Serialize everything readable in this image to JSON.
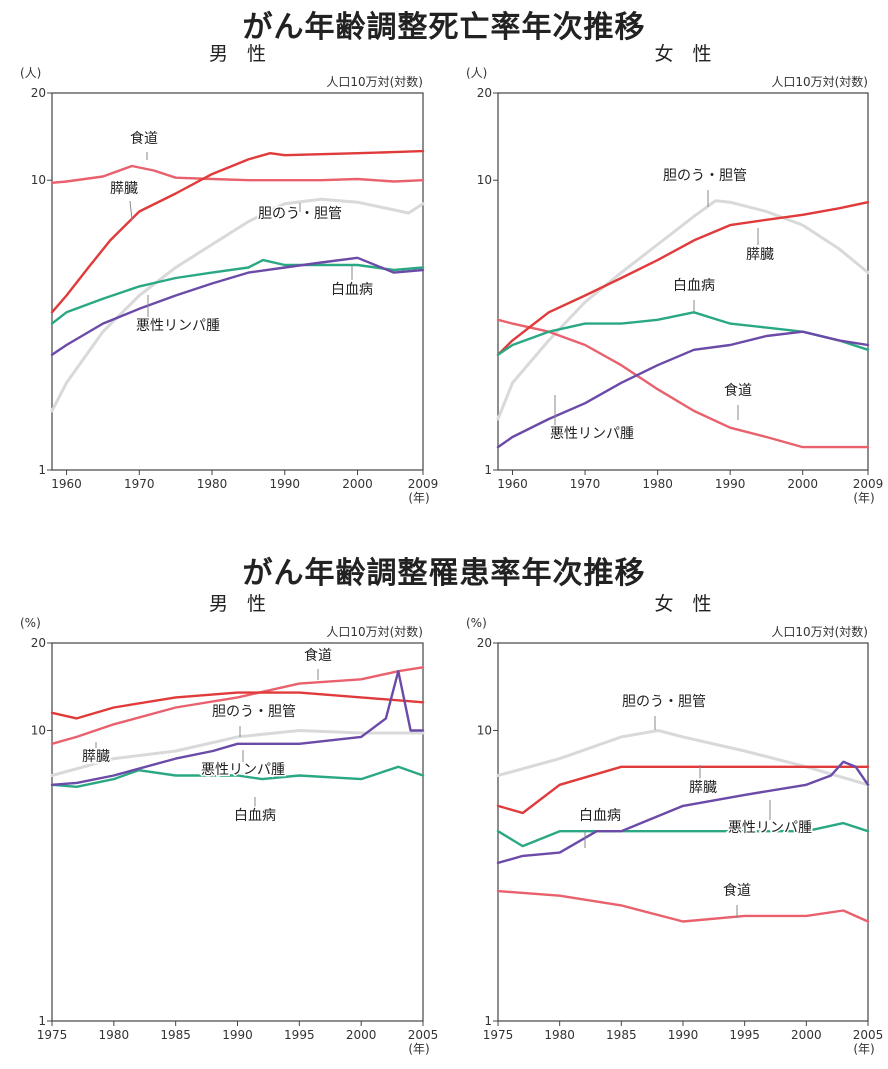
{
  "mortality": {
    "title": "がん年齢調整死亡率年次推移",
    "charts": [
      {
        "gender": "男　性",
        "unit": "(人)",
        "note": "人口10万対(対数)",
        "x_ticks": [
          "1960",
          "1970",
          "1980",
          "1990",
          "2000",
          "2009"
        ],
        "x_unit": "(年)",
        "y_ticks": [
          "20",
          "10",
          "1"
        ]
      },
      {
        "gender": "女　性",
        "unit": "(人)",
        "note": "人口10万対(対数)",
        "x_ticks": [
          "1960",
          "1970",
          "1980",
          "1990",
          "2000",
          "2009"
        ],
        "x_unit": "(年)",
        "y_ticks": [
          "20",
          "10",
          "1"
        ]
      }
    ]
  },
  "incidence": {
    "title": "がん年齢調整罹患率年次推移",
    "charts": [
      {
        "gender": "男　性",
        "unit": "(%)",
        "note": "人口10万対(対数)",
        "x_ticks": [
          "1975",
          "1980",
          "1985",
          "1990",
          "1995",
          "2000",
          "2005"
        ],
        "x_unit": "(年)",
        "y_ticks": [
          "20",
          "10",
          "1"
        ]
      },
      {
        "gender": "女　性",
        "unit": "(%)",
        "note": "人口10万対(対数)",
        "x_ticks": [
          "1975",
          "1980",
          "1985",
          "1990",
          "1995",
          "2000",
          "2005"
        ],
        "x_unit": "(年)",
        "y_ticks": [
          "20",
          "10",
          "1"
        ]
      }
    ]
  },
  "colors": {
    "食道": "#e8616d",
    "膵臓": "#e03a3a",
    "胆のう・胆管": "#d9d9d9",
    "白血病": "#2aa884",
    "悪性リンパ腫": "#6b4aa8"
  },
  "chart_data": [
    {
      "type": "line",
      "title": "がん年齢調整死亡率年次推移",
      "subtitle": "男　性",
      "ylabel": "(人)",
      "note": "人口10万対(対数)",
      "xlim": [
        1958,
        2009
      ],
      "ylim": [
        1,
        20
      ],
      "yscale": "log",
      "series": [
        {
          "name": "食道",
          "x": [
            1958,
            1960,
            1965,
            1969,
            1972,
            1975,
            1980,
            1985,
            1990,
            1995,
            2000,
            2005,
            2009
          ],
          "y": [
            9.8,
            9.9,
            10.3,
            11.2,
            10.8,
            10.2,
            10.1,
            10.0,
            10.0,
            10.0,
            10.1,
            9.9,
            10.0
          ]
        },
        {
          "name": "膵臓",
          "x": [
            1958,
            1960,
            1963,
            1966,
            1970,
            1975,
            1980,
            1985,
            1988,
            1990,
            1995,
            2000,
            2005,
            2009
          ],
          "y": [
            3.5,
            4.0,
            5.0,
            6.2,
            7.8,
            9.0,
            10.5,
            11.8,
            12.4,
            12.2,
            12.3,
            12.4,
            12.5,
            12.6
          ]
        },
        {
          "name": "胆のう・胆管",
          "x": [
            1958,
            1960,
            1965,
            1970,
            1975,
            1980,
            1985,
            1990,
            1995,
            2000,
            2005,
            2007,
            2009
          ],
          "y": [
            1.6,
            2.0,
            3.0,
            4.0,
            5.0,
            6.0,
            7.2,
            8.3,
            8.6,
            8.4,
            7.9,
            7.7,
            8.3
          ]
        },
        {
          "name": "白血病",
          "x": [
            1958,
            1960,
            1965,
            1970,
            1975,
            1980,
            1985,
            1987,
            1990,
            1995,
            2000,
            2005,
            2009
          ],
          "y": [
            3.2,
            3.5,
            3.9,
            4.3,
            4.6,
            4.8,
            5.0,
            5.3,
            5.1,
            5.1,
            5.1,
            4.9,
            5.0
          ]
        },
        {
          "name": "悪性リンパ腫",
          "x": [
            1958,
            1960,
            1965,
            1970,
            1975,
            1980,
            1985,
            1990,
            1995,
            2000,
            2005,
            2009
          ],
          "y": [
            2.5,
            2.7,
            3.2,
            3.6,
            4.0,
            4.4,
            4.8,
            5.0,
            5.2,
            5.4,
            4.8,
            4.9
          ]
        }
      ]
    },
    {
      "type": "line",
      "title": "がん年齢調整死亡率年次推移",
      "subtitle": "女　性",
      "ylabel": "(人)",
      "note": "人口10万対(対数)",
      "xlim": [
        1958,
        2009
      ],
      "ylim": [
        1,
        20
      ],
      "yscale": "log",
      "series": [
        {
          "name": "食道",
          "x": [
            1958,
            1960,
            1965,
            1970,
            1975,
            1980,
            1985,
            1990,
            1995,
            2000,
            2005,
            2009
          ],
          "y": [
            3.3,
            3.2,
            3.0,
            2.7,
            2.3,
            1.9,
            1.6,
            1.4,
            1.3,
            1.2,
            1.2,
            1.2
          ]
        },
        {
          "name": "膵臓",
          "x": [
            1958,
            1960,
            1965,
            1970,
            1975,
            1980,
            1985,
            1990,
            1995,
            2000,
            2005,
            2009
          ],
          "y": [
            2.5,
            2.8,
            3.5,
            4.0,
            4.6,
            5.3,
            6.2,
            7.0,
            7.3,
            7.6,
            8.0,
            8.4
          ]
        },
        {
          "name": "胆のう・胆管",
          "x": [
            1958,
            1960,
            1965,
            1970,
            1975,
            1980,
            1985,
            1988,
            1990,
            1995,
            2000,
            2005,
            2009
          ],
          "y": [
            1.5,
            2.0,
            2.8,
            3.8,
            4.8,
            6.0,
            7.5,
            8.5,
            8.4,
            7.8,
            7.0,
            5.8,
            4.8
          ]
        },
        {
          "name": "白血病",
          "x": [
            1958,
            1960,
            1965,
            1970,
            1975,
            1980,
            1985,
            1990,
            1995,
            2000,
            2005,
            2009
          ],
          "y": [
            2.5,
            2.7,
            3.0,
            3.2,
            3.2,
            3.3,
            3.5,
            3.2,
            3.1,
            3.0,
            2.8,
            2.6
          ]
        },
        {
          "name": "悪性リンパ腫",
          "x": [
            1958,
            1960,
            1965,
            1970,
            1975,
            1980,
            1985,
            1990,
            1995,
            2000,
            2005,
            2009
          ],
          "y": [
            1.2,
            1.3,
            1.5,
            1.7,
            2.0,
            2.3,
            2.6,
            2.7,
            2.9,
            3.0,
            2.8,
            2.7
          ]
        }
      ]
    },
    {
      "type": "line",
      "title": "がん年齢調整罹患率年次推移",
      "subtitle": "男　性",
      "ylabel": "(%)",
      "note": "人口10万対(対数)",
      "xlim": [
        1975,
        2005
      ],
      "ylim": [
        1,
        20
      ],
      "yscale": "log",
      "series": [
        {
          "name": "食道",
          "x": [
            1975,
            1977,
            1980,
            1985,
            1990,
            1995,
            2000,
            2003,
            2005
          ],
          "y": [
            9.0,
            9.5,
            10.5,
            12.0,
            13.0,
            14.5,
            15.0,
            16.0,
            16.5
          ]
        },
        {
          "name": "膵臓",
          "x": [
            1975,
            1977,
            1980,
            1985,
            1990,
            1995,
            2000,
            2005
          ],
          "y": [
            11.5,
            11.0,
            12.0,
            13.0,
            13.5,
            13.5,
            13.0,
            12.5
          ]
        },
        {
          "name": "胆のう・胆管",
          "x": [
            1975,
            1980,
            1985,
            1990,
            1995,
            2000,
            2005
          ],
          "y": [
            7.0,
            8.0,
            8.5,
            9.5,
            10.0,
            9.8,
            9.8
          ]
        },
        {
          "name": "白血病",
          "x": [
            1975,
            1977,
            1980,
            1982,
            1985,
            1990,
            1992,
            1995,
            2000,
            2003,
            2005
          ],
          "y": [
            6.5,
            6.4,
            6.8,
            7.3,
            7.0,
            7.0,
            6.8,
            7.0,
            6.8,
            7.5,
            7.0
          ]
        },
        {
          "name": "悪性リンパ腫",
          "x": [
            1975,
            1977,
            1980,
            1985,
            1988,
            1990,
            1995,
            2000,
            2002,
            2003,
            2004,
            2005
          ],
          "y": [
            6.5,
            6.6,
            7.0,
            8.0,
            8.5,
            9.0,
            9.0,
            9.5,
            11.0,
            16.0,
            10.0,
            10.0
          ]
        }
      ]
    },
    {
      "type": "line",
      "title": "がん年齢調整罹患率年次推移",
      "subtitle": "女　性",
      "ylabel": "(%)",
      "note": "人口10万対(対数)",
      "xlim": [
        1975,
        2005
      ],
      "ylim": [
        1,
        20
      ],
      "yscale": "log",
      "series": [
        {
          "name": "食道",
          "x": [
            1975,
            1980,
            1985,
            1990,
            1995,
            2000,
            2003,
            2005
          ],
          "y": [
            2.8,
            2.7,
            2.5,
            2.2,
            2.3,
            2.3,
            2.4,
            2.2
          ]
        },
        {
          "name": "膵臓",
          "x": [
            1975,
            1977,
            1980,
            1985,
            1990,
            1995,
            2000,
            2005
          ],
          "y": [
            5.5,
            5.2,
            6.5,
            7.5,
            7.5,
            7.5,
            7.5,
            7.5
          ]
        },
        {
          "name": "胆のう・胆管",
          "x": [
            1975,
            1980,
            1985,
            1988,
            1990,
            1995,
            2000,
            2005
          ],
          "y": [
            7.0,
            8.0,
            9.5,
            10.0,
            9.5,
            8.5,
            7.5,
            6.5
          ]
        },
        {
          "name": "白血病",
          "x": [
            1975,
            1977,
            1980,
            1985,
            1990,
            1995,
            2000,
            2003,
            2005
          ],
          "y": [
            4.5,
            4.0,
            4.5,
            4.5,
            4.5,
            4.5,
            4.5,
            4.8,
            4.5
          ]
        },
        {
          "name": "悪性リンパ腫",
          "x": [
            1975,
            1977,
            1980,
            1983,
            1985,
            1990,
            1995,
            2000,
            2002,
            2003,
            2004,
            2005
          ],
          "y": [
            3.5,
            3.7,
            3.8,
            4.5,
            4.5,
            5.5,
            6.0,
            6.5,
            7.0,
            7.8,
            7.5,
            6.5
          ]
        }
      ]
    }
  ]
}
